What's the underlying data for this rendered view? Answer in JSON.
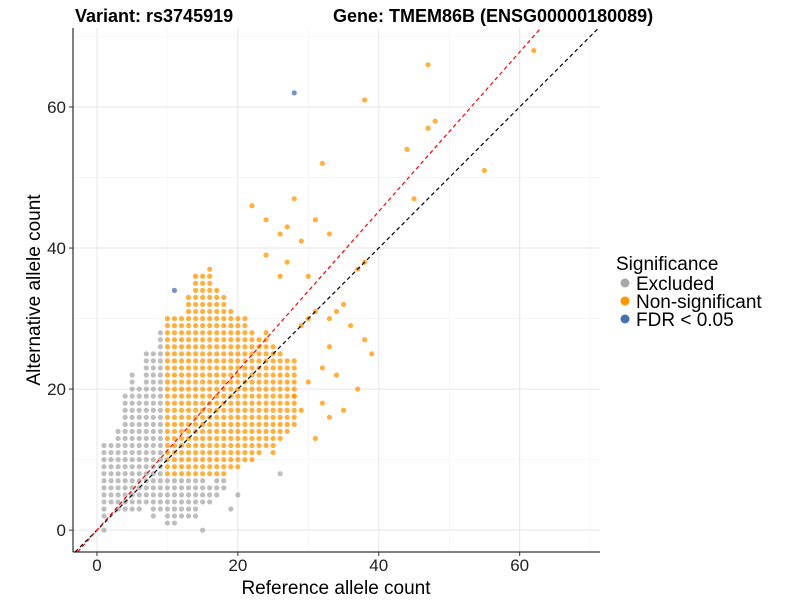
{
  "chart_data": {
    "type": "scatter",
    "title_left": "Variant: rs3745919",
    "title_right": "Gene: TMEM86B (ENSG00000180089)",
    "xlabel": "Reference allele count",
    "ylabel": "Alternative allele count",
    "xlim": [
      -3.4,
      71.4
    ],
    "ylim": [
      -3.1,
      71.2
    ],
    "xticks": [
      "0",
      "20",
      "40",
      "60"
    ],
    "yticks": [
      "0",
      "20",
      "40",
      "60"
    ],
    "grid": true,
    "legend": {
      "title": "Significance",
      "placement": "right",
      "entries": [
        {
          "label": "Excluded",
          "color": "#a8a8a8"
        },
        {
          "label": "Non-significant",
          "color": "#ff9500"
        },
        {
          "label": "FDR < 0.05",
          "color": "#4672a8"
        }
      ]
    },
    "reference_lines": [
      {
        "name": "identity",
        "slope": 1,
        "intercept": 0,
        "color": "#000000",
        "style": "dashed"
      },
      {
        "name": "fit",
        "slope": 1.13,
        "intercept": 0,
        "color": "#ff0000",
        "style": "dashed"
      }
    ],
    "dense_columns": {
      "Excluded": [
        [
          1,
          2,
          12
        ],
        [
          2,
          4,
          12
        ],
        [
          3,
          3,
          14
        ],
        [
          4,
          3,
          19
        ],
        [
          5,
          3,
          22
        ],
        [
          6,
          3,
          20
        ],
        [
          7,
          4,
          25
        ],
        [
          8,
          2,
          25
        ],
        [
          9,
          3,
          28
        ],
        [
          10,
          1,
          7
        ],
        [
          11,
          1,
          7
        ],
        [
          12,
          2,
          7
        ],
        [
          13,
          2,
          7
        ],
        [
          14,
          3,
          7
        ],
        [
          15,
          4,
          7
        ],
        [
          16,
          4,
          6
        ],
        [
          17,
          5,
          7
        ],
        [
          18,
          6,
          7
        ]
      ],
      "Non-significant": [
        [
          10,
          8,
          30
        ],
        [
          11,
          8,
          30
        ],
        [
          12,
          8,
          30
        ],
        [
          13,
          8,
          33
        ],
        [
          14,
          8,
          36
        ],
        [
          15,
          8,
          36
        ],
        [
          16,
          8,
          37
        ],
        [
          17,
          8,
          34
        ],
        [
          18,
          8,
          33
        ],
        [
          19,
          9,
          31
        ],
        [
          20,
          9,
          30
        ],
        [
          21,
          10,
          30
        ],
        [
          22,
          10,
          28
        ],
        [
          23,
          11,
          27
        ],
        [
          24,
          12,
          28
        ],
        [
          25,
          12,
          26
        ],
        [
          26,
          13,
          25
        ],
        [
          27,
          14,
          24
        ],
        [
          28,
          15,
          24
        ]
      ]
    },
    "points": {
      "Excluded": [
        [
          1,
          0
        ],
        [
          15,
          0
        ],
        [
          20,
          5
        ],
        [
          26,
          8
        ],
        [
          19,
          3
        ],
        [
          14,
          2
        ]
      ],
      "Non-significant": [
        [
          62,
          68
        ],
        [
          47,
          66
        ],
        [
          38,
          61
        ],
        [
          48,
          58
        ],
        [
          47,
          57
        ],
        [
          44,
          54
        ],
        [
          32,
          52
        ],
        [
          55,
          51
        ],
        [
          45,
          47
        ],
        [
          28,
          47
        ],
        [
          22,
          46
        ],
        [
          24,
          44
        ],
        [
          27,
          43
        ],
        [
          31,
          44
        ],
        [
          33,
          42
        ],
        [
          26,
          42
        ],
        [
          29,
          41
        ],
        [
          38,
          38
        ],
        [
          37,
          37
        ],
        [
          30,
          36
        ],
        [
          35,
          32
        ],
        [
          36,
          29
        ],
        [
          38,
          27
        ],
        [
          33,
          26
        ],
        [
          32,
          23
        ],
        [
          34,
          22
        ],
        [
          32,
          18
        ],
        [
          33,
          16
        ],
        [
          35,
          17
        ],
        [
          31,
          13
        ],
        [
          37,
          20
        ],
        [
          39,
          25
        ],
        [
          30,
          30
        ],
        [
          31,
          31
        ],
        [
          29,
          29
        ],
        [
          33,
          30
        ],
        [
          34,
          31
        ],
        [
          27,
          38
        ],
        [
          26,
          36
        ],
        [
          24,
          39
        ],
        [
          30,
          21
        ],
        [
          29,
          17
        ],
        [
          28,
          19
        ],
        [
          25,
          11
        ]
      ],
      "FDR < 0.05": [
        [
          28,
          62
        ],
        [
          11,
          34
        ]
      ]
    }
  }
}
